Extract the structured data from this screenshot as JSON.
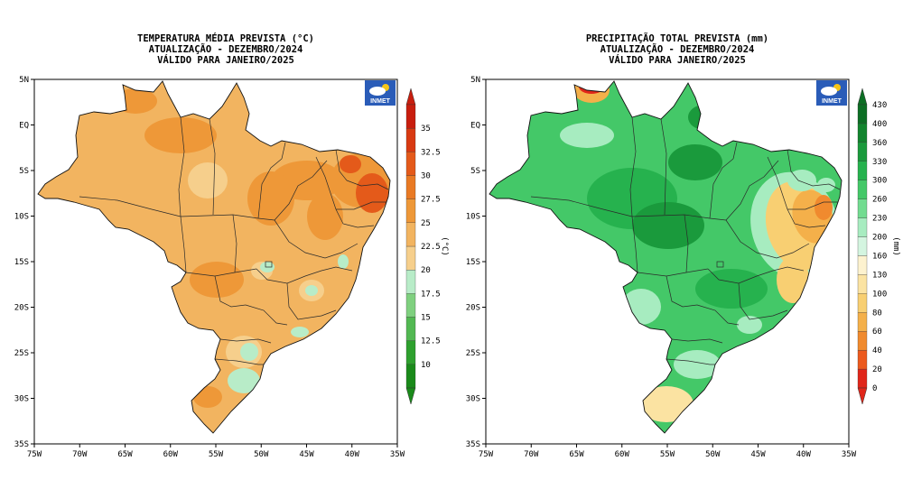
{
  "panels": [
    {
      "id": "temperature",
      "title_lines": [
        "TEMPERATURA MÉDIA PREVISTA (°C)",
        "ATUALIZAÇÃO - DEZEMBRO/2024",
        "VÁLIDO PARA JANEIRO/2025"
      ],
      "unit_label": "(°C)",
      "logo_text": "INMET",
      "colorbar": {
        "colors": [
          "#1a8a1a",
          "#2ea02e",
          "#52b852",
          "#7fd07f",
          "#b8ecc8",
          "#f6cf8c",
          "#f2b460",
          "#ee9838",
          "#e97a24",
          "#e45a1a",
          "#d83a12",
          "#c81e0e"
        ],
        "labels": [
          "10",
          "12.5",
          "15",
          "17.5",
          "20",
          "22.5",
          "25",
          "27.5",
          "30",
          "32.5",
          "35"
        ]
      }
    },
    {
      "id": "precipitation",
      "title_lines": [
        "PRECIPITAÇÃO TOTAL PREVISTA (mm)",
        "ATUALIZAÇÃO - DEZEMBRO/2024",
        "VÁLIDO PARA JANEIRO/2025"
      ],
      "unit_label": "(mm)",
      "logo_text": "INMET",
      "colorbar": {
        "colors": [
          "#e0261a",
          "#ec5a1e",
          "#f08a2e",
          "#f4b04a",
          "#f8cf72",
          "#fbe3a2",
          "#fdf2cf",
          "#d4f5e0",
          "#a7ecc0",
          "#72dc90",
          "#44c868",
          "#26b24e",
          "#1a9a3c",
          "#12842e",
          "#0c6e24"
        ],
        "labels": [
          "0",
          "20",
          "40",
          "60",
          "80",
          "100",
          "130",
          "160",
          "200",
          "230",
          "260",
          "300",
          "330",
          "360",
          "400",
          "430"
        ]
      }
    }
  ],
  "axes": {
    "lat_labels": [
      "5N",
      "EQ",
      "5S",
      "10S",
      "15S",
      "20S",
      "25S",
      "30S",
      "35S"
    ],
    "lon_labels": [
      "75W",
      "70W",
      "65W",
      "60W",
      "55W",
      "50W",
      "45W",
      "40W",
      "35W"
    ]
  },
  "colors": {
    "temp_base": "#f2b460",
    "temp_warm": "#ee9838",
    "temp_cool": "#f6cf8c",
    "temp_cold": "#b8ecc8",
    "temp_hot": "#e45a1a",
    "precip_base": "#44c868",
    "precip_wet": "#26b24e",
    "precip_wetter": "#1a9a3c",
    "precip_light": "#a7ecc0",
    "precip_dry": "#f8cf72",
    "precip_drier": "#f4b04a",
    "precip_driest": "#e0261a",
    "logo_bg": "#2a5cb8"
  }
}
